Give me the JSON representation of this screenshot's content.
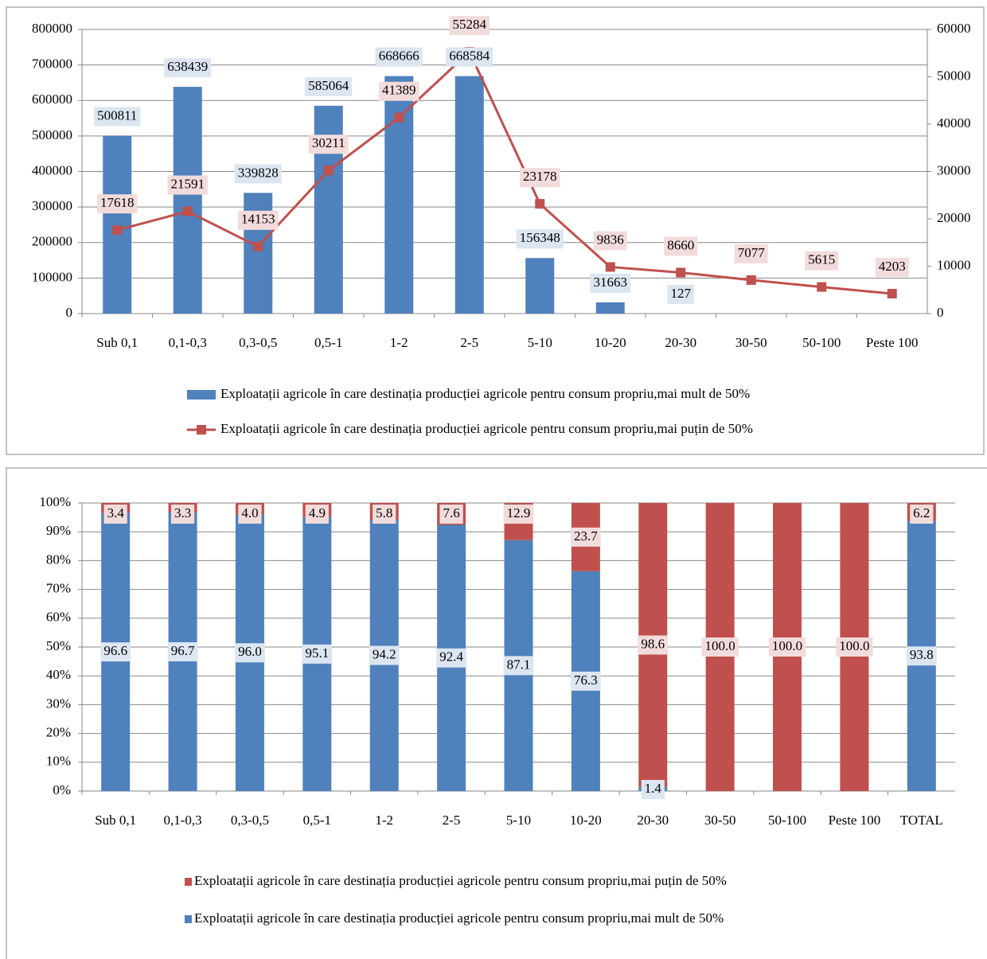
{
  "chart_data": [
    {
      "type": "combo",
      "categories": [
        "Sub 0,1",
        "0,1-0,3",
        "0,3-0,5",
        "0,5-1",
        "1-2",
        "2-5",
        "5-10",
        "10-20",
        "20-30",
        "30-50",
        "50-100",
        "Peste 100"
      ],
      "series": [
        {
          "name": "Exploatații agricole în care destinația producției agricole pentru consum propriu,mai mult de 50%",
          "type": "bar",
          "color": "#4f81bd",
          "values": [
            500811,
            638439,
            339828,
            585064,
            668666,
            668584,
            156348,
            31663,
            127,
            null,
            null,
            null
          ]
        },
        {
          "name": "Exploatații agricole în care destinația producției agricole pentru consum propriu,mai puțin de 50%",
          "type": "line",
          "axis": "y2",
          "color": "#c0504d",
          "values": [
            17618,
            21591,
            14153,
            30211,
            41389,
            55284,
            23178,
            9836,
            8660,
            7077,
            5615,
            4203
          ]
        }
      ],
      "ylim": [
        0,
        800000
      ],
      "yticks": [
        0,
        100000,
        200000,
        300000,
        400000,
        500000,
        600000,
        700000,
        800000
      ],
      "y2lim": [
        0,
        60000
      ],
      "y2ticks": [
        0,
        10000,
        20000,
        30000,
        40000,
        50000,
        60000
      ],
      "grid": true,
      "legend": "bottom"
    },
    {
      "type": "stacked-bar",
      "categories": [
        "Sub 0,1",
        "0,1-0,3",
        "0,3-0,5",
        "0,5-1",
        "1-2",
        "2-5",
        "5-10",
        "10-20",
        "20-30",
        "30-50",
        "50-100",
        "Peste 100",
        "TOTAL"
      ],
      "series": [
        {
          "name": "Exploatații agricole în care destinația producției agricole pentru consum propriu,mai mult de 50%",
          "color": "#4f81bd",
          "values": [
            96.6,
            96.7,
            96.0,
            95.1,
            94.2,
            92.4,
            87.1,
            76.3,
            1.4,
            null,
            null,
            null,
            93.8
          ],
          "value_labels": [
            "96.6",
            "96.7",
            "96.0",
            "95.1",
            "94.2",
            "92.4",
            "87.1",
            "76.3",
            "1.4",
            null,
            null,
            null,
            "93.8"
          ]
        },
        {
          "name": "Exploatații agricole în care destinația producției agricole pentru consum propriu,mai puțin de 50%",
          "color": "#c0504d",
          "values": [
            3.4,
            3.3,
            4.0,
            4.9,
            5.8,
            7.6,
            12.9,
            23.7,
            98.6,
            100.0,
            100.0,
            100.0,
            6.2
          ],
          "value_labels": [
            "3.4",
            "3.3",
            "4.0",
            "4.9",
            "5.8",
            "7.6",
            "12.9",
            "23.7",
            "98.6",
            "100.0",
            "100.0",
            "100.0",
            "6.2"
          ]
        }
      ],
      "ylim": [
        0,
        100
      ],
      "yticks": [
        {
          "value": 0,
          "label": "0%"
        },
        {
          "value": 10,
          "label": "10%"
        },
        {
          "value": 20,
          "label": "20%"
        },
        {
          "value": 30,
          "label": "30%"
        },
        {
          "value": 40,
          "label": "40%"
        },
        {
          "value": 50,
          "label": "50%"
        },
        {
          "value": 60,
          "label": "60%"
        },
        {
          "value": 70,
          "label": "70%"
        },
        {
          "value": 80,
          "label": "80%"
        },
        {
          "value": 90,
          "label": "90%"
        },
        {
          "value": 100,
          "label": "100%"
        }
      ],
      "grid": true,
      "legend": "bottom"
    }
  ]
}
